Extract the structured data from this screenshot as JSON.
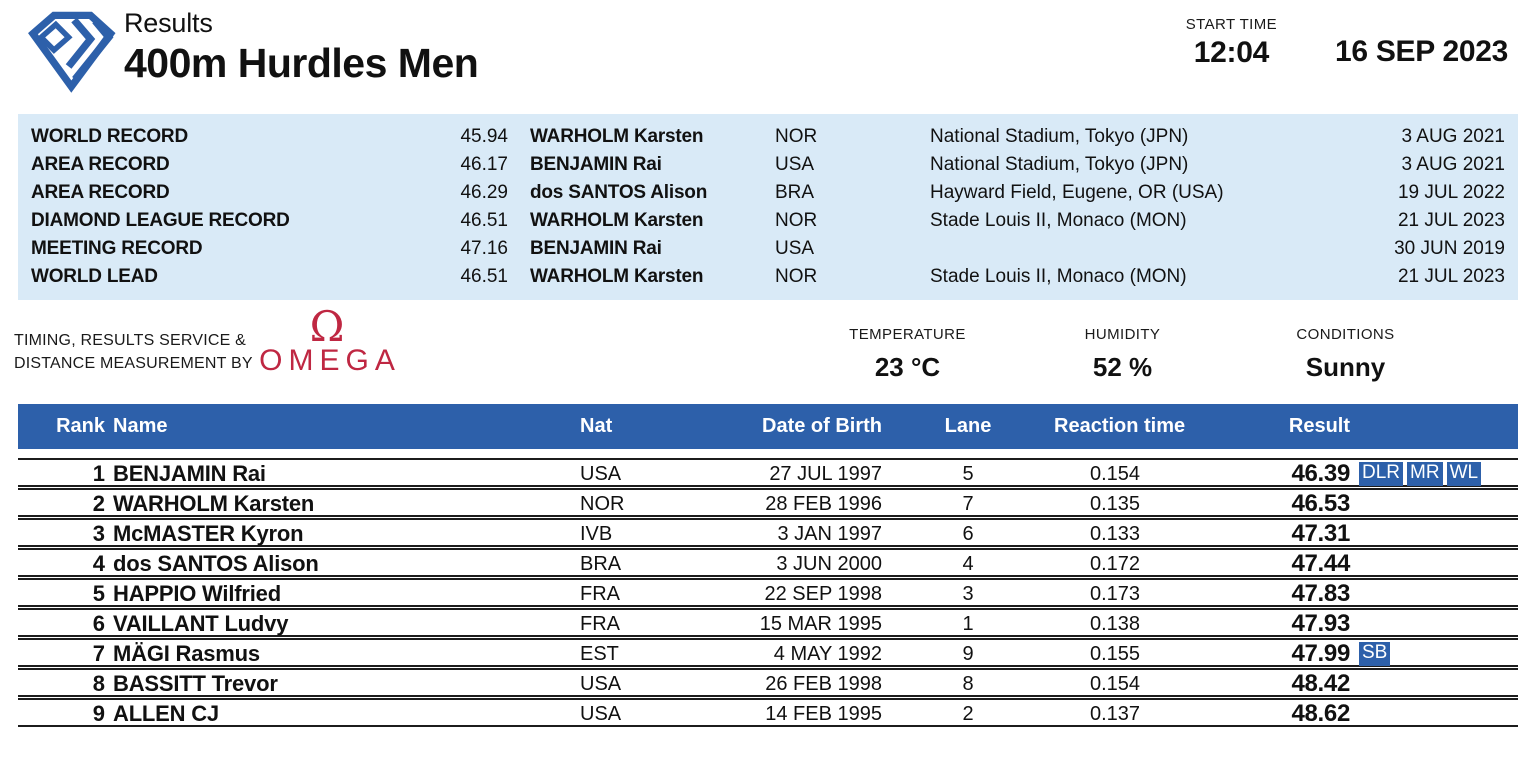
{
  "header": {
    "kicker": "Results",
    "title": "400m Hurdles Men",
    "start_time_label": "START TIME",
    "start_time": "12:04",
    "date": "16 SEP 2023"
  },
  "records": [
    {
      "label": "WORLD RECORD",
      "mark": "45.94",
      "holder": "WARHOLM Karsten",
      "nat": "NOR",
      "venue": "National Stadium, Tokyo (JPN)",
      "date": "3 AUG 2021"
    },
    {
      "label": "AREA RECORD",
      "mark": "46.17",
      "holder": "BENJAMIN Rai",
      "nat": "USA",
      "venue": "National Stadium, Tokyo (JPN)",
      "date": "3 AUG 2021"
    },
    {
      "label": "AREA RECORD",
      "mark": "46.29",
      "holder": "dos SANTOS Alison",
      "nat": "BRA",
      "venue": "Hayward Field, Eugene, OR (USA)",
      "date": "19 JUL 2022"
    },
    {
      "label": "DIAMOND LEAGUE RECORD",
      "mark": "46.51",
      "holder": "WARHOLM Karsten",
      "nat": "NOR",
      "venue": "Stade Louis II, Monaco (MON)",
      "date": "21 JUL 2023"
    },
    {
      "label": "MEETING RECORD",
      "mark": "47.16",
      "holder": "BENJAMIN Rai",
      "nat": "USA",
      "venue": "",
      "date": "30 JUN 2019"
    },
    {
      "label": "WORLD LEAD",
      "mark": "46.51",
      "holder": "WARHOLM Karsten",
      "nat": "NOR",
      "venue": "Stade Louis II, Monaco (MON)",
      "date": "21 JUL 2023"
    }
  ],
  "service": {
    "line1": "TIMING, RESULTS SERVICE &",
    "line2": "DISTANCE MEASUREMENT BY",
    "omega_symbol": "Ω",
    "omega_text": "OMEGA"
  },
  "weather": {
    "temperature_label": "TEMPERATURE",
    "temperature": "23 °C",
    "humidity_label": "HUMIDITY",
    "humidity": "52 %",
    "conditions_label": "CONDITIONS",
    "conditions": "Sunny"
  },
  "table": {
    "headers": {
      "rank": "Rank",
      "name": "Name",
      "nat": "Nat",
      "dob": "Date of Birth",
      "lane": "Lane",
      "reaction": "Reaction time",
      "result": "Result"
    },
    "rows": [
      {
        "rank": "1",
        "name": "BENJAMIN Rai",
        "nat": "USA",
        "dob": "27 JUL 1997",
        "lane": "5",
        "reaction": "0.154",
        "result": "46.39",
        "badges": [
          "DLR",
          "MR",
          "WL"
        ]
      },
      {
        "rank": "2",
        "name": "WARHOLM Karsten",
        "nat": "NOR",
        "dob": "28 FEB 1996",
        "lane": "7",
        "reaction": "0.135",
        "result": "46.53",
        "badges": []
      },
      {
        "rank": "3",
        "name": "McMASTER Kyron",
        "nat": "IVB",
        "dob": "3 JAN 1997",
        "lane": "6",
        "reaction": "0.133",
        "result": "47.31",
        "badges": []
      },
      {
        "rank": "4",
        "name": "dos SANTOS Alison",
        "nat": "BRA",
        "dob": "3 JUN 2000",
        "lane": "4",
        "reaction": "0.172",
        "result": "47.44",
        "badges": []
      },
      {
        "rank": "5",
        "name": "HAPPIO Wilfried",
        "nat": "FRA",
        "dob": "22 SEP 1998",
        "lane": "3",
        "reaction": "0.173",
        "result": "47.83",
        "badges": []
      },
      {
        "rank": "6",
        "name": "VAILLANT Ludvy",
        "nat": "FRA",
        "dob": "15 MAR 1995",
        "lane": "1",
        "reaction": "0.138",
        "result": "47.93",
        "badges": []
      },
      {
        "rank": "7",
        "name": "MÄGI Rasmus",
        "nat": "EST",
        "dob": "4 MAY 1992",
        "lane": "9",
        "reaction": "0.155",
        "result": "47.99",
        "badges": [
          "SB"
        ]
      },
      {
        "rank": "8",
        "name": "BASSITT Trevor",
        "nat": "USA",
        "dob": "26 FEB 1998",
        "lane": "8",
        "reaction": "0.154",
        "result": "48.42",
        "badges": []
      },
      {
        "rank": "9",
        "name": "ALLEN CJ",
        "nat": "USA",
        "dob": "14 FEB 1995",
        "lane": "2",
        "reaction": "0.137",
        "result": "48.62",
        "badges": []
      }
    ]
  },
  "colors": {
    "accent_blue": "#2d60aa",
    "records_bg": "#d9eaf7",
    "omega_red": "#bf2742",
    "row_line": "#1c1c1c"
  }
}
